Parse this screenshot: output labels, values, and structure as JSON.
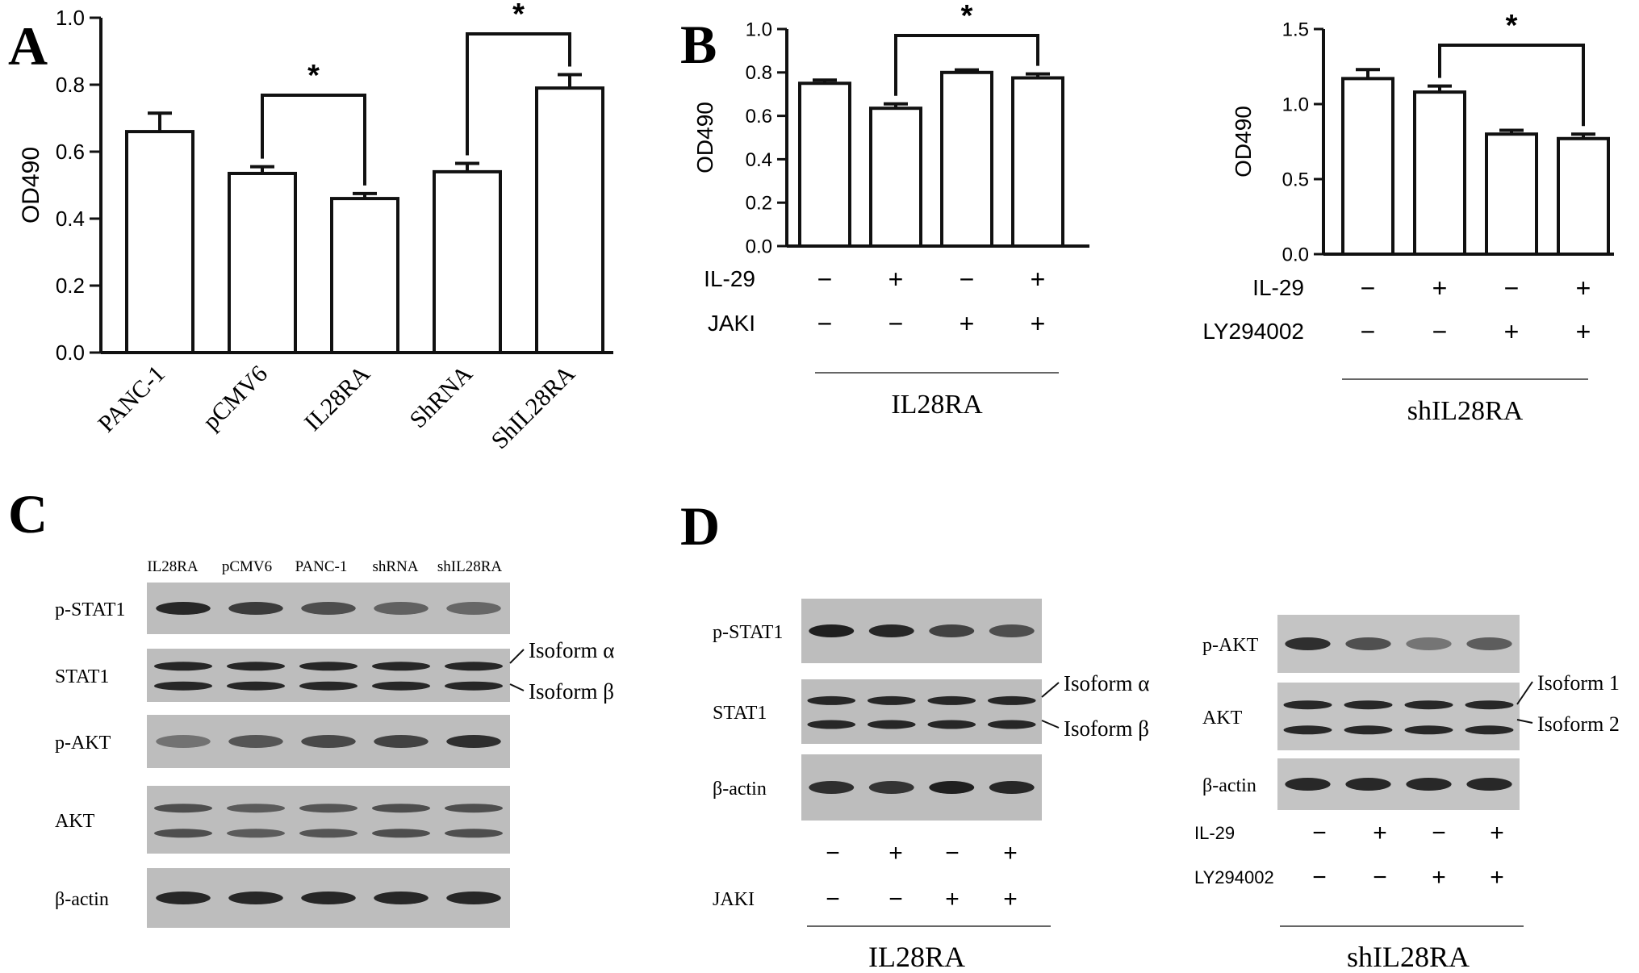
{
  "panel_labels": {
    "a": "A",
    "b": "B",
    "c": "C",
    "d": "D"
  },
  "chart_data": [
    {
      "type": "bar",
      "panel": "A",
      "ylabel": "OD490",
      "categories": [
        "PANC-1",
        "pCMV6",
        "IL28RA",
        "ShRNA",
        "ShIL28RA"
      ],
      "values": [
        0.66,
        0.535,
        0.46,
        0.54,
        0.79
      ],
      "errors": [
        0.055,
        0.02,
        0.015,
        0.025,
        0.04
      ],
      "ylim": [
        0,
        1.0
      ],
      "yticks": [
        "0.0",
        "0.2",
        "0.4",
        "0.6",
        "0.8",
        "1.0"
      ],
      "significance": [
        {
          "from": 1,
          "to": 2,
          "label": "*"
        },
        {
          "from": 3,
          "to": 4,
          "label": "*"
        }
      ]
    },
    {
      "type": "bar",
      "panel": "B-left",
      "ylabel": "OD490",
      "values": [
        0.75,
        0.635,
        0.8,
        0.775
      ],
      "errors": [
        0.015,
        0.02,
        0.012,
        0.018
      ],
      "ylim": [
        0,
        1.0
      ],
      "yticks": [
        "0.0",
        "0.2",
        "0.4",
        "0.6",
        "0.8",
        "1.0"
      ],
      "treatments": [
        {
          "name": "IL-29",
          "signs": [
            "−",
            "+",
            "−",
            "+"
          ]
        },
        {
          "name": "JAKI",
          "signs": [
            "−",
            "−",
            "+",
            "+"
          ]
        }
      ],
      "group_label": "IL28RA",
      "significance": [
        {
          "from": 1,
          "to": 3,
          "label": "*"
        }
      ]
    },
    {
      "type": "bar",
      "panel": "B-right",
      "ylabel": "OD490",
      "values": [
        1.17,
        1.08,
        0.8,
        0.77
      ],
      "errors": [
        0.06,
        0.04,
        0.025,
        0.03
      ],
      "ylim": [
        0,
        1.5
      ],
      "yticks": [
        "0.0",
        "0.5",
        "1.0",
        "1.5"
      ],
      "treatments": [
        {
          "name": "IL-29",
          "signs": [
            "−",
            "+",
            "−",
            "+"
          ]
        },
        {
          "name": "LY294002",
          "signs": [
            "−",
            "−",
            "+",
            "+"
          ]
        }
      ],
      "group_label": "shIL28RA",
      "significance": [
        {
          "from": 1,
          "to": 3,
          "label": "*"
        }
      ]
    }
  ],
  "blot_c": {
    "lanes": [
      "IL28RA",
      "pCMV6",
      "PANC-1",
      "shRNA",
      "shIL28RA"
    ],
    "rows": [
      {
        "label": "p-STAT1",
        "intensity": [
          0.9,
          0.75,
          0.6,
          0.45,
          0.4
        ],
        "bands": 1
      },
      {
        "label": "STAT1",
        "intensity": [
          0.9,
          0.9,
          0.9,
          0.9,
          0.9
        ],
        "bands": 2
      },
      {
        "label": "p-AKT",
        "intensity": [
          0.3,
          0.55,
          0.65,
          0.7,
          0.85
        ],
        "bands": 1
      },
      {
        "label": "AKT",
        "intensity": [
          0.6,
          0.5,
          0.55,
          0.6,
          0.6
        ],
        "bands": 2
      },
      {
        "label": "β-actin",
        "intensity": [
          0.9,
          0.9,
          0.9,
          0.9,
          0.9
        ],
        "bands": 1
      }
    ],
    "isoforms": [
      "Isoform α",
      "Isoform β"
    ]
  },
  "blot_d_left": {
    "rows": [
      {
        "label": "p-STAT1",
        "intensity": [
          0.95,
          0.9,
          0.7,
          0.6
        ],
        "bands": 1
      },
      {
        "label": "STAT1",
        "intensity": [
          0.9,
          0.9,
          0.9,
          0.9
        ],
        "bands": 2
      },
      {
        "label": "β-actin",
        "intensity": [
          0.85,
          0.8,
          0.95,
          0.9
        ],
        "bands": 1
      }
    ],
    "isoforms": [
      "Isoform α",
      "Isoform β"
    ],
    "treatments": [
      {
        "name": "",
        "signs": [
          "−",
          "+",
          "−",
          "+"
        ]
      },
      {
        "name": "JAKI",
        "signs": [
          "−",
          "−",
          "+",
          "+"
        ]
      }
    ],
    "group_label": "IL28RA"
  },
  "blot_d_right": {
    "rows": [
      {
        "label": "p-AKT",
        "intensity": [
          0.85,
          0.6,
          0.3,
          0.5
        ],
        "bands": 1
      },
      {
        "label": "AKT",
        "intensity": [
          0.9,
          0.9,
          0.9,
          0.9
        ],
        "bands": 2
      },
      {
        "label": "β-actin",
        "intensity": [
          0.9,
          0.9,
          0.9,
          0.9
        ],
        "bands": 1
      }
    ],
    "isoforms": [
      "Isoform 1",
      "Isoform 2"
    ],
    "treatments": [
      {
        "name": "IL-29",
        "signs": [
          "−",
          "+",
          "−",
          "+"
        ]
      },
      {
        "name": "LY294002",
        "signs": [
          "−",
          "−",
          "+",
          "+"
        ]
      }
    ],
    "group_label": "shIL28RA"
  }
}
